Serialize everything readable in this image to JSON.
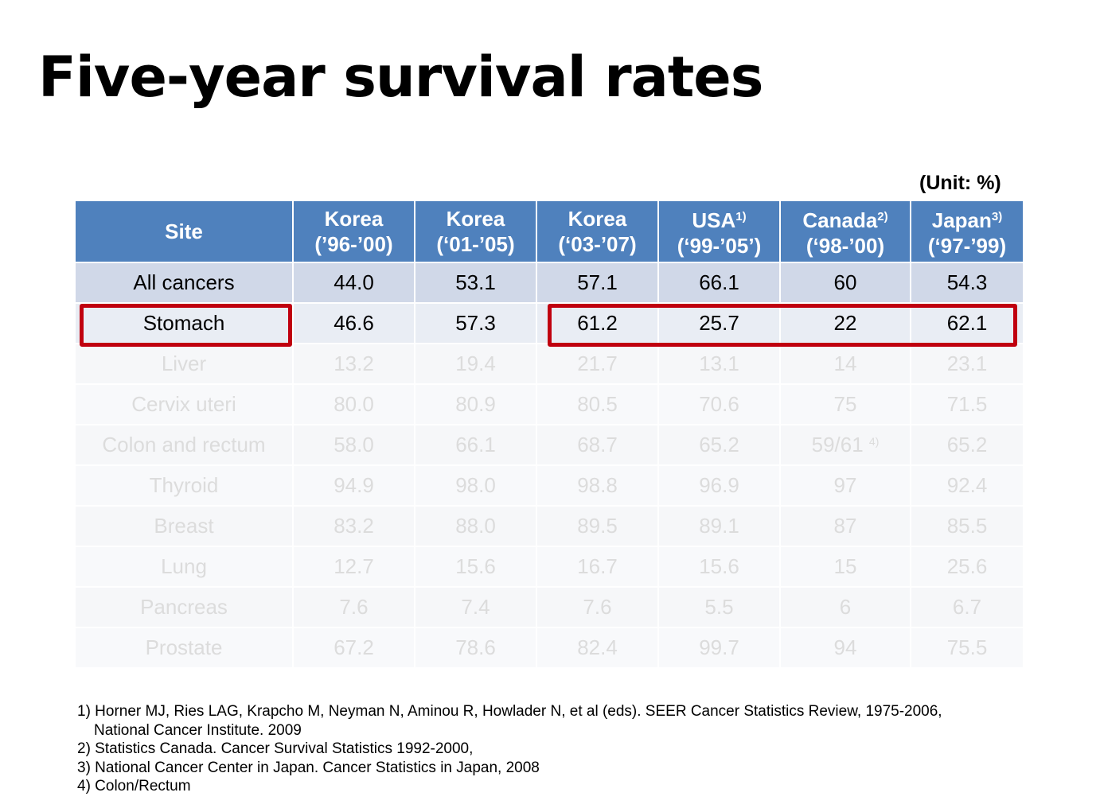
{
  "title": "Five-year survival rates",
  "unit_label": "(Unit: %)",
  "table": {
    "columns": [
      {
        "line1": "Site",
        "line2": "",
        "sup": ""
      },
      {
        "line1": "Korea",
        "line2": "(’96-’00)",
        "sup": ""
      },
      {
        "line1": "Korea",
        "line2": "(‘01-’05)",
        "sup": ""
      },
      {
        "line1": "Korea",
        "line2": "(‘03-’07)",
        "sup": ""
      },
      {
        "line1": "USA",
        "line2": "(‘99-’05’)",
        "sup": "1)"
      },
      {
        "line1": "Canada",
        "line2": "(‘98-’00)",
        "sup": "2)"
      },
      {
        "line1": "Japan",
        "line2": "(‘97-’99)",
        "sup": "3)"
      }
    ],
    "rows": [
      {
        "site": "All cancers",
        "values": [
          "44.0",
          "53.1",
          "57.1",
          "66.1",
          "60",
          "54.3"
        ]
      },
      {
        "site": "Stomach",
        "values": [
          "46.6",
          "57.3",
          "61.2",
          "25.7",
          "22",
          "62.1"
        ]
      },
      {
        "site": "Liver",
        "values": [
          "13.2",
          "19.4",
          "21.7",
          "13.1",
          "14",
          "23.1"
        ]
      },
      {
        "site": "Cervix uteri",
        "values": [
          "80.0",
          "80.9",
          "80.5",
          "70.6",
          "75",
          "71.5"
        ]
      },
      {
        "site": "Colon and rectum",
        "values": [
          "58.0",
          "66.1",
          "68.7",
          "65.2",
          "59/61",
          "65.2"
        ],
        "canada_sup": "4)"
      },
      {
        "site": "Thyroid",
        "values": [
          "94.9",
          "98.0",
          "98.8",
          "96.9",
          "97",
          "92.4"
        ]
      },
      {
        "site": "Breast",
        "values": [
          "83.2",
          "88.0",
          "89.5",
          "89.1",
          "87",
          "85.5"
        ]
      },
      {
        "site": "Lung",
        "values": [
          "12.7",
          "15.6",
          "16.7",
          "15.6",
          "15",
          "25.6"
        ]
      },
      {
        "site": "Pancreas",
        "values": [
          "7.6",
          "7.4",
          "7.6",
          "5.5",
          "6",
          "6.7"
        ]
      },
      {
        "site": "Prostate",
        "values": [
          "67.2",
          "78.6",
          "82.4",
          "99.7",
          "94",
          "75.5"
        ]
      }
    ]
  },
  "colors": {
    "header": "#4f81bd",
    "highlight_border": "#c0000f",
    "row_all_cancers": "#d0d8e8",
    "row_stomach": "#e9edf4",
    "dimmed_text": "#dcdcdc"
  },
  "footnotes": [
    {
      "line": "1) Horner MJ, Ries LAG, Krapcho M, Neyman N, Aminou R, Howlader N, et al (eds). SEER Cancer Statistics Review, 1975-2006,",
      "cont": "National Cancer Institute. 2009"
    },
    {
      "line": "2) Statistics Canada. Cancer Survival Statistics 1992-2000,",
      "cont": ""
    },
    {
      "line": "3) National Cancer Center in Japan. Cancer Statistics in Japan, 2008",
      "cont": ""
    },
    {
      "line": "4) Colon/Rectum",
      "cont": ""
    }
  ]
}
